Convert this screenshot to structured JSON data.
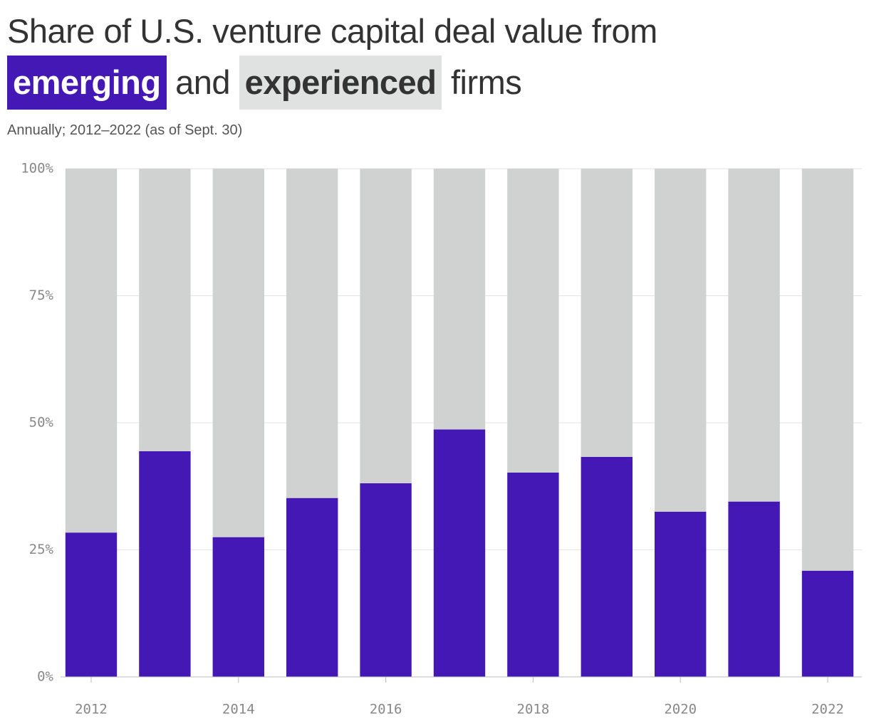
{
  "chart_data": {
    "type": "stacked_bar",
    "title": {
      "before": "Share of U.S. venture capital deal value from",
      "middle": "and",
      "after": "firms"
    },
    "subtitle": "Annually; 2012–2022 (as of Sept. 30)",
    "categories": [
      "2012",
      null,
      "2014",
      null,
      "2016",
      null,
      "2018",
      null,
      "2020",
      null,
      "2022"
    ],
    "series": [
      {
        "name": "emerging",
        "color": "#4318b4",
        "values": [
          28.4,
          44.4,
          27.5,
          35.2,
          38.1,
          48.7,
          40.2,
          43.3,
          32.5,
          34.5,
          20.9
        ]
      },
      {
        "name": "experienced",
        "color": "#d0d1d1",
        "values": [
          71.6,
          55.6,
          72.5,
          64.8,
          61.9,
          51.3,
          59.8,
          56.7,
          67.5,
          65.5,
          79.1
        ]
      }
    ],
    "ylim": [
      0,
      100
    ],
    "yticks": [
      {
        "value": 0,
        "label": "0%"
      },
      {
        "value": 25,
        "label": "25%"
      },
      {
        "value": 50,
        "label": "50%"
      },
      {
        "value": 75,
        "label": "75%"
      },
      {
        "value": 100,
        "label": "100%"
      }
    ],
    "grid": true
  }
}
